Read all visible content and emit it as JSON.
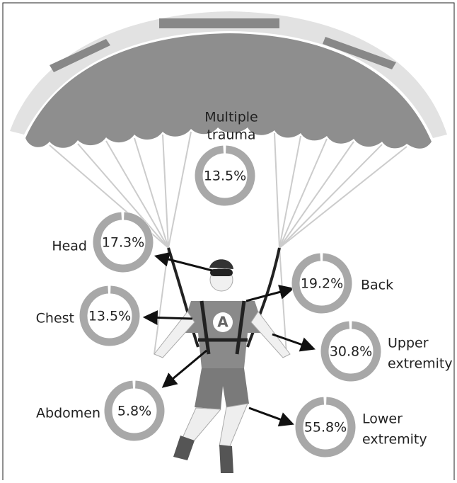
{
  "injuries": [
    {
      "label": [
        "Multiple",
        "trauma"
      ],
      "value": "13.5%"
    },
    {
      "label": [
        "Head"
      ],
      "value": "17.3%"
    },
    {
      "label": [
        "Back"
      ],
      "value": "19.2%"
    },
    {
      "label": [
        "Chest"
      ],
      "value": "13.5%"
    },
    {
      "label": [
        "Upper",
        "extremity"
      ],
      "value": "30.8%"
    },
    {
      "label": [
        "Abdomen"
      ],
      "value": "5.8%"
    },
    {
      "label": [
        "Lower",
        "extremity"
      ],
      "value": "55.8%"
    }
  ]
}
